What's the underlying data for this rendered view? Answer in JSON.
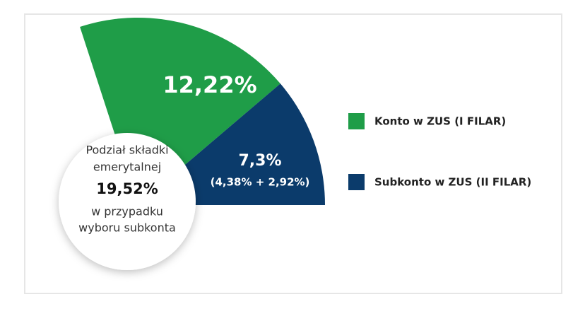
{
  "chart_data": {
    "type": "pie",
    "categories": [
      "Konto w ZUS (I FILAR)",
      "Subkonto w ZUS (II FILAR)"
    ],
    "values": [
      12.22,
      7.3
    ],
    "value_labels": [
      "12,22%",
      "7,3%"
    ],
    "colors": [
      "#1f9d48",
      "#0b3b6b"
    ],
    "annotation": "(4,38% + 2,92%)",
    "center_label": [
      "Podział składki",
      "emerytalnej"
    ],
    "center_value": "19,52%",
    "center_note": [
      "w przypadku",
      "wyboru subkonta"
    ]
  }
}
